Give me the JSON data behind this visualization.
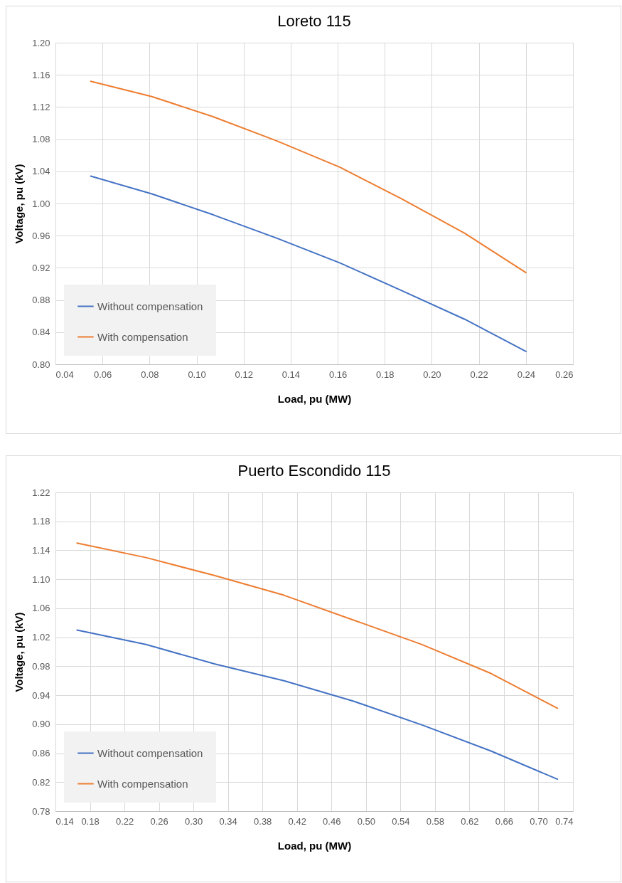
{
  "chart_data": [
    {
      "type": "line",
      "title": "Loreto 115",
      "xlabel": "Load, pu (MW)",
      "ylabel": "Voltage, pu (kV)",
      "x": [
        0.055,
        0.081,
        0.107,
        0.134,
        0.161,
        0.187,
        0.214,
        0.24
      ],
      "series": [
        {
          "name": "Without compensation",
          "color": "#4472c4",
          "values": [
            1.034,
            1.012,
            0.986,
            0.957,
            0.926,
            0.892,
            0.856,
            0.816
          ]
        },
        {
          "name": "With compensation",
          "color": "#ed7d31",
          "values": [
            1.152,
            1.133,
            1.108,
            1.078,
            1.045,
            1.006,
            0.963,
            0.914
          ]
        }
      ],
      "xlim": [
        0.04,
        0.26
      ],
      "xticks": [
        {
          "value": 0.04,
          "label": "0.04"
        },
        {
          "value": 0.06,
          "label": "0.06"
        },
        {
          "value": 0.08,
          "label": "0.08"
        },
        {
          "value": 0.1,
          "label": "0.10"
        },
        {
          "value": 0.12,
          "label": "0.12"
        },
        {
          "value": 0.14,
          "label": "0.14"
        },
        {
          "value": 0.16,
          "label": "0.16"
        },
        {
          "value": 0.18,
          "label": "0.18"
        },
        {
          "value": 0.2,
          "label": "0.20"
        },
        {
          "value": 0.22,
          "label": "0.22"
        },
        {
          "value": 0.24,
          "label": "0.24"
        },
        {
          "value": 0.26,
          "label": "0.26"
        }
      ],
      "ylim": [
        0.8,
        1.2
      ],
      "yticks": [
        {
          "value": 0.8,
          "label": "0.80"
        },
        0.84,
        0.88,
        0.92,
        0.96,
        {
          "value": 1.0,
          "label": "1.00"
        },
        1.04,
        1.08,
        1.12,
        1.16,
        {
          "value": 1.2,
          "label": "1.20"
        }
      ],
      "grid": true,
      "legend": "bottom left",
      "marker": "none",
      "line_style": "solid"
    },
    {
      "type": "line",
      "title": "Puerto Escondido 115",
      "xlabel": "Load, pu (MW)",
      "ylabel": "Voltage, pu (kV)",
      "x": [
        0.165,
        0.245,
        0.325,
        0.405,
        0.485,
        0.565,
        0.645,
        0.722
      ],
      "series": [
        {
          "name": "Without compensation",
          "color": "#4472c4",
          "values": [
            1.03,
            1.01,
            0.983,
            0.96,
            0.932,
            0.899,
            0.863,
            0.824
          ]
        },
        {
          "name": "With compensation",
          "color": "#ed7d31",
          "values": [
            1.15,
            1.13,
            1.105,
            1.078,
            1.044,
            1.01,
            0.97,
            0.922
          ]
        }
      ],
      "xlim": [
        0.14,
        0.74
      ],
      "xticks": [
        0.14,
        0.18,
        0.22,
        0.26,
        {
          "value": 0.3,
          "label": "0.30"
        },
        0.34,
        0.38,
        0.42,
        0.46,
        {
          "value": 0.5,
          "label": "0.50"
        },
        0.54,
        0.58,
        0.62,
        0.66,
        {
          "value": 0.7,
          "label": "0.70"
        },
        0.74
      ],
      "ylim": [
        0.78,
        1.22
      ],
      "yticks": [
        0.78,
        0.82,
        0.86,
        {
          "value": 0.9,
          "label": "0.90"
        },
        0.94,
        0.98,
        1.02,
        1.06,
        {
          "value": 1.1,
          "label": "1.10"
        },
        1.14,
        1.18,
        1.22
      ],
      "grid": true,
      "legend": "bottom left",
      "marker": "none",
      "line_style": "solid"
    }
  ]
}
